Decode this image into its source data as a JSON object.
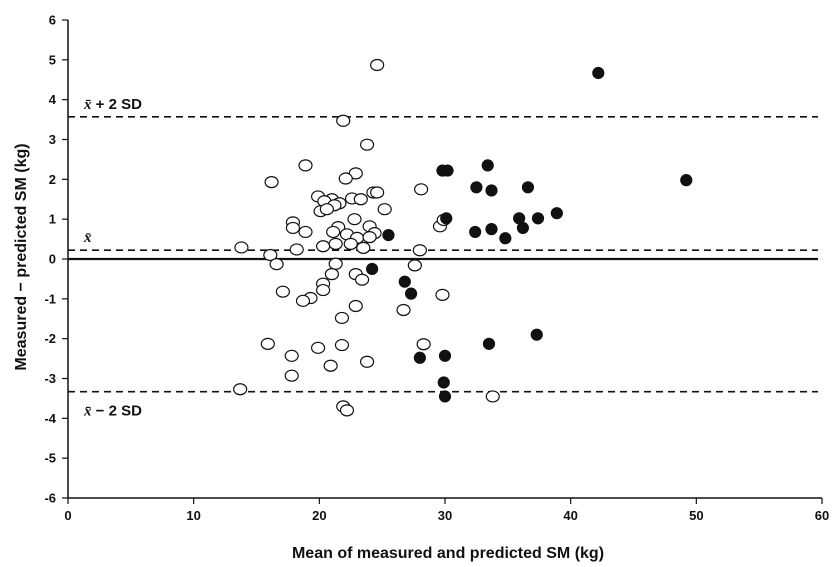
{
  "chart_data": {
    "type": "scatter",
    "title": "",
    "xlabel": "Mean of measured and predicted SM (kg)",
    "ylabel": "Measured − predicted SM (kg)",
    "xlim": [
      0,
      60
    ],
    "ylim": [
      -6,
      6
    ],
    "xticks": [
      0,
      10,
      20,
      30,
      40,
      50,
      60
    ],
    "yticks": [
      -6,
      -5,
      -4,
      -3,
      -2,
      -1,
      0,
      1,
      2,
      3,
      4,
      5,
      6
    ],
    "grid": false,
    "reference_lines": [
      {
        "name": "upper",
        "label_main": "x̄",
        "label_suffix": " + 2 SD",
        "y": 3.57,
        "style": "dashed"
      },
      {
        "name": "mean",
        "label_main": "x̄",
        "label_suffix": "",
        "y": 0.22,
        "style": "dashed"
      },
      {
        "name": "zero",
        "label_main": "",
        "label_suffix": "",
        "y": 0,
        "style": "solid"
      },
      {
        "name": "lower",
        "label_main": "x̄",
        "label_suffix": " − 2 SD",
        "y": -3.33,
        "style": "dashed"
      }
    ],
    "series": [
      {
        "marker": "open-circle",
        "points": [
          [
            24.6,
            4.87
          ],
          [
            21.9,
            3.47
          ],
          [
            23.8,
            2.87
          ],
          [
            18.9,
            2.35
          ],
          [
            22.9,
            2.15
          ],
          [
            22.1,
            2.02
          ],
          [
            16.2,
            1.93
          ],
          [
            24.3,
            1.67
          ],
          [
            24.6,
            1.67
          ],
          [
            28.1,
            1.75
          ],
          [
            19.9,
            1.57
          ],
          [
            21.0,
            1.5
          ],
          [
            20.4,
            1.45
          ],
          [
            21.6,
            1.4
          ],
          [
            21.2,
            1.35
          ],
          [
            22.6,
            1.52
          ],
          [
            23.3,
            1.5
          ],
          [
            20.1,
            1.2
          ],
          [
            20.6,
            1.25
          ],
          [
            25.2,
            1.25
          ],
          [
            22.8,
            1.0
          ],
          [
            21.5,
            0.8
          ],
          [
            24.0,
            0.82
          ],
          [
            29.6,
            0.82
          ],
          [
            29.9,
            0.98
          ],
          [
            17.9,
            0.92
          ],
          [
            17.9,
            0.78
          ],
          [
            18.9,
            0.68
          ],
          [
            21.1,
            0.68
          ],
          [
            22.2,
            0.62
          ],
          [
            23.0,
            0.53
          ],
          [
            24.4,
            0.65
          ],
          [
            24.0,
            0.55
          ],
          [
            22.5,
            0.38
          ],
          [
            20.3,
            0.32
          ],
          [
            21.3,
            0.38
          ],
          [
            13.8,
            0.29
          ],
          [
            23.5,
            0.28
          ],
          [
            28.0,
            0.22
          ],
          [
            18.2,
            0.24
          ],
          [
            16.1,
            0.1
          ],
          [
            16.6,
            -0.13
          ],
          [
            21.3,
            -0.12
          ],
          [
            21.0,
            -0.38
          ],
          [
            22.9,
            -0.38
          ],
          [
            23.4,
            -0.52
          ],
          [
            20.3,
            -0.62
          ],
          [
            20.3,
            -0.78
          ],
          [
            27.6,
            -0.16
          ],
          [
            17.1,
            -0.82
          ],
          [
            19.3,
            -0.98
          ],
          [
            18.7,
            -1.05
          ],
          [
            22.9,
            -1.18
          ],
          [
            26.7,
            -1.28
          ],
          [
            29.8,
            -0.9
          ],
          [
            21.8,
            -1.48
          ],
          [
            15.9,
            -2.13
          ],
          [
            21.8,
            -2.16
          ],
          [
            28.3,
            -2.14
          ],
          [
            19.9,
            -2.23
          ],
          [
            17.8,
            -2.43
          ],
          [
            23.8,
            -2.58
          ],
          [
            20.9,
            -2.68
          ],
          [
            17.8,
            -2.93
          ],
          [
            13.7,
            -3.27
          ],
          [
            21.9,
            -3.7
          ],
          [
            22.2,
            -3.8
          ],
          [
            33.8,
            -3.45
          ]
        ]
      },
      {
        "marker": "filled-circle",
        "points": [
          [
            42.2,
            4.67
          ],
          [
            49.2,
            1.98
          ],
          [
            33.4,
            2.35
          ],
          [
            29.8,
            2.22
          ],
          [
            30.2,
            2.22
          ],
          [
            32.5,
            1.8
          ],
          [
            33.7,
            1.72
          ],
          [
            36.6,
            1.8
          ],
          [
            30.1,
            1.02
          ],
          [
            37.4,
            1.02
          ],
          [
            38.9,
            1.15
          ],
          [
            35.9,
            1.02
          ],
          [
            32.4,
            0.68
          ],
          [
            33.7,
            0.75
          ],
          [
            36.2,
            0.78
          ],
          [
            34.8,
            0.52
          ],
          [
            25.5,
            0.6
          ],
          [
            24.2,
            -0.25
          ],
          [
            26.8,
            -0.57
          ],
          [
            27.3,
            -0.87
          ],
          [
            33.5,
            -2.13
          ],
          [
            37.3,
            -1.9
          ],
          [
            28.0,
            -2.48
          ],
          [
            30.0,
            -2.43
          ],
          [
            29.9,
            -3.1
          ],
          [
            30.0,
            -3.45
          ]
        ]
      }
    ]
  }
}
